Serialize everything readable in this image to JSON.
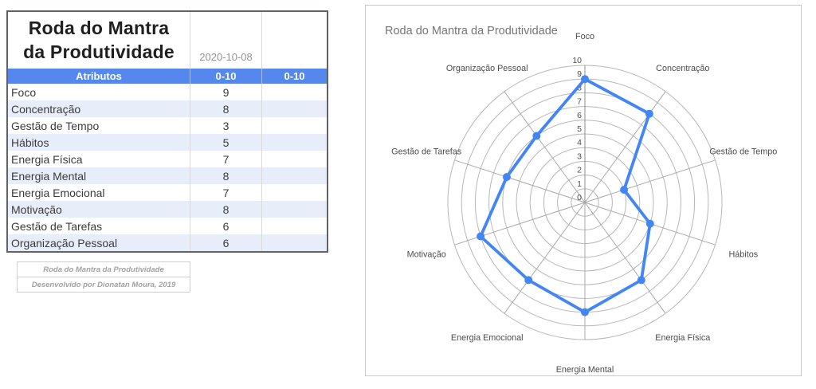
{
  "table": {
    "title": "Roda do Mantra da Produtividade",
    "date": "2020-10-08",
    "columns": [
      "Atributos",
      "0-10",
      "0-10"
    ],
    "rows": [
      {
        "label": "Foco",
        "value": "9"
      },
      {
        "label": "Concentração",
        "value": "8"
      },
      {
        "label": "Gestão de Tempo",
        "value": "3"
      },
      {
        "label": "Hábitos",
        "value": "5"
      },
      {
        "label": "Energia Física",
        "value": "7"
      },
      {
        "label": "Energia Mental",
        "value": "8"
      },
      {
        "label": "Energia Emocional",
        "value": "7"
      },
      {
        "label": "Motivação",
        "value": "8"
      },
      {
        "label": "Gestão de Tarefas",
        "value": "6"
      },
      {
        "label": "Organização Pessoal",
        "value": "6"
      }
    ]
  },
  "footer": {
    "line1": "Roda do Mantra da Produtividade",
    "line2": "Desenvolvido por Dionatan Moura, 2019"
  },
  "chart_data": {
    "type": "radar",
    "title": "Roda do Mantra da Produtividade",
    "categories": [
      "Foco",
      "Concentração",
      "Gestão de Tempo",
      "Hábitos",
      "Energia Física",
      "Energia Mental",
      "Energia Emocional",
      "Motivação",
      "Gestão de Tarefas",
      "Organização Pessoal"
    ],
    "values": [
      9,
      8,
      3,
      5,
      7,
      8,
      7,
      8,
      6,
      6
    ],
    "rmin": 0,
    "rmax": 10,
    "tick_step": 1,
    "grid": true,
    "legend_position": "none",
    "line_color": "#4285f4",
    "grid_color": "#b7b7b7",
    "spoke_color": "#a9a9a9",
    "main_axis_color": "#8c8c8c",
    "label_color": "#4c4c4c",
    "tick_color": "#4d4d4d"
  },
  "colors": {
    "header_bg": "#5587ec",
    "header_text": "#ffffff",
    "band_row": "#e8eef9",
    "table_border": "#5f6368",
    "accent_blue": "#4285f4"
  }
}
